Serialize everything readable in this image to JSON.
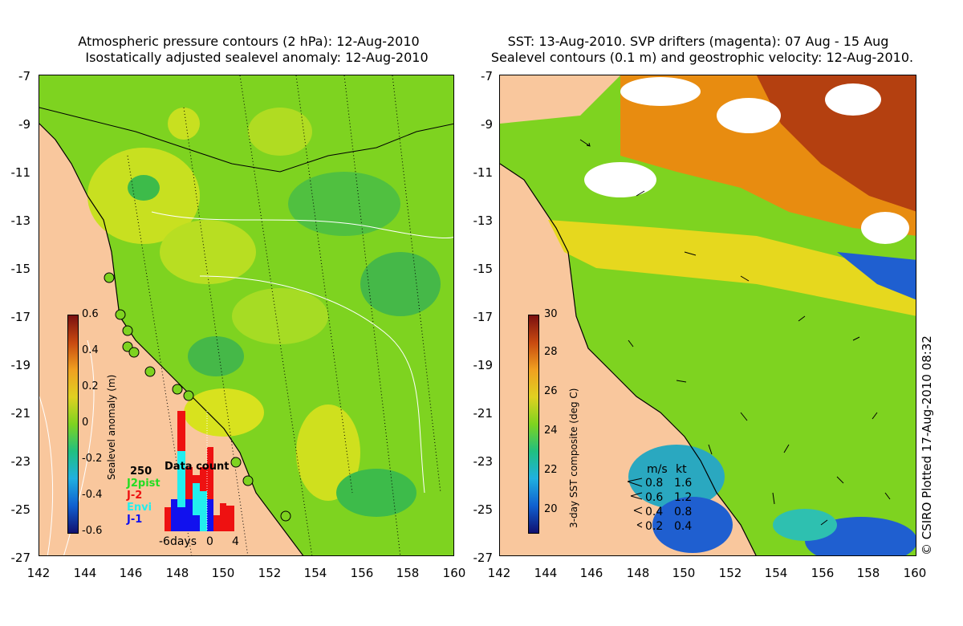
{
  "left_panel": {
    "title_line1": "Atmospheric pressure contours (2 hPa): 12-Aug-2010",
    "title_line2": "Isostatically adjusted sealevel anomaly: 12-Aug-2010",
    "colorbar": {
      "title": "Sealevel anomaly (m)",
      "ticks": [
        "0.6",
        "0.4",
        "0.2",
        "0",
        "-0.2",
        "-0.4",
        "-0.6"
      ]
    },
    "data_count": {
      "title": "Data count",
      "max_label": "250",
      "legend": [
        {
          "label": "J2pist",
          "color": "#22dd22"
        },
        {
          "label": "J-2",
          "color": "#ee1111"
        },
        {
          "label": "Envi",
          "color": "#22eeee"
        },
        {
          "label": "J-1",
          "color": "#1111ee"
        }
      ],
      "x_labels": [
        "-6days",
        "0",
        "4"
      ]
    }
  },
  "right_panel": {
    "title_line1": "SST: 13-Aug-2010. SVP drifters (magenta): 07 Aug - 15 Aug",
    "title_line2": "Sealevel contours (0.1 m) and geostrophic velocity: 12-Aug-2010.",
    "colorbar": {
      "title": "3-day SST composite (deg C)",
      "ticks": [
        "30",
        "28",
        "26",
        "24",
        "22",
        "20"
      ]
    },
    "velocity_legend": {
      "headers": [
        "m/s",
        "kt"
      ],
      "rows": [
        {
          "ms": "0.8",
          "kt": "1.6"
        },
        {
          "ms": "0.6",
          "kt": "1.2"
        },
        {
          "ms": "0.4",
          "kt": "0.8"
        },
        {
          "ms": "0.2",
          "kt": "0.4"
        }
      ]
    }
  },
  "axes": {
    "y_ticks": [
      "-7",
      "-9",
      "-11",
      "-13",
      "-15",
      "-17",
      "-19",
      "-21",
      "-23",
      "-25",
      "-27"
    ],
    "x_ticks": [
      "142",
      "144",
      "146",
      "148",
      "150",
      "152",
      "154",
      "156",
      "158",
      "160"
    ]
  },
  "credit": "© CSIRO Plotted 17-Aug-2010 08:32",
  "colors": {
    "land": "#f9c79d",
    "ocean_green": "#7ed320",
    "white_gap": "#ffffff"
  }
}
